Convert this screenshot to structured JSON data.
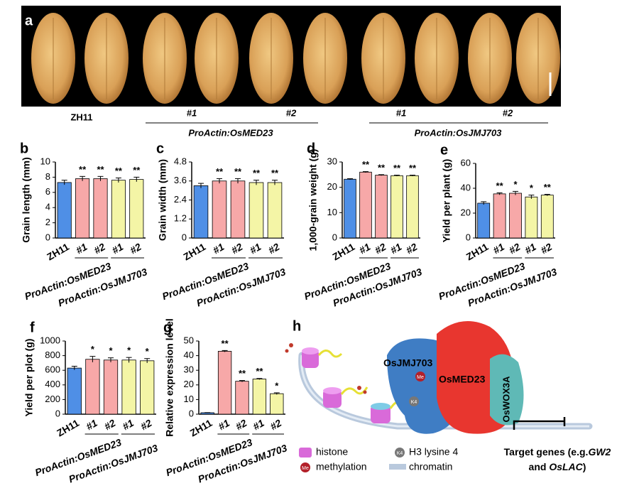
{
  "panel_a": {
    "panel": "a",
    "control": "ZH11",
    "lines": [
      "#1",
      "#2",
      "#1",
      "#2"
    ],
    "constructs": [
      "ProActin:OsMED23",
      "ProActin:OsJMJ703"
    ]
  },
  "chart_data": [
    {
      "type": "bar",
      "panel": "b",
      "ylabel": "Grain length (mm)",
      "categories": [
        "ZH11",
        "#1",
        "#2",
        "#1",
        "#2"
      ],
      "group_labels": [
        "ProActin:OsMED23",
        "ProActin:OsJMJ703"
      ],
      "values": [
        7.3,
        7.8,
        7.8,
        7.6,
        7.7
      ],
      "errors": [
        0.3,
        0.3,
        0.3,
        0.3,
        0.3
      ],
      "annotations": [
        null,
        "**",
        "**",
        "**",
        "**"
      ],
      "colors": [
        "#4f8fe6",
        "#f7a8a8",
        "#f7a8a8",
        "#f4f5a6",
        "#f4f5a6"
      ],
      "ylim": [
        0,
        10
      ],
      "yticks": [
        0,
        2,
        4,
        6,
        8,
        10
      ]
    },
    {
      "type": "bar",
      "panel": "c",
      "ylabel": "Grain width (mm)",
      "categories": [
        "ZH11",
        "#1",
        "#2",
        "#1",
        "#2"
      ],
      "group_labels": [
        "ProActin:OsMED23",
        "ProActin:OsJMJ703"
      ],
      "values": [
        3.3,
        3.6,
        3.6,
        3.5,
        3.5
      ],
      "errors": [
        0.15,
        0.15,
        0.15,
        0.15,
        0.15
      ],
      "annotations": [
        null,
        "**",
        "**",
        "**",
        "**"
      ],
      "colors": [
        "#4f8fe6",
        "#f7a8a8",
        "#f7a8a8",
        "#f4f5a6",
        "#f4f5a6"
      ],
      "ylim": [
        0,
        4.8
      ],
      "yticks": [
        0,
        1.2,
        2.4,
        3.6,
        4.8
      ]
    },
    {
      "type": "bar",
      "panel": "d",
      "ylabel": "1,000-grain weight (g)",
      "categories": [
        "ZH11",
        "#1",
        "#2",
        "#1",
        "#2"
      ],
      "group_labels": [
        "ProActin:OsMED23",
        "ProActin:OsJMJ703"
      ],
      "values": [
        23.2,
        26,
        24.8,
        24.6,
        24.6
      ],
      "errors": [
        0.2,
        0.2,
        0.2,
        0.2,
        0.2
      ],
      "annotations": [
        null,
        "**",
        "**",
        "**",
        "**"
      ],
      "colors": [
        "#4f8fe6",
        "#f7a8a8",
        "#f7a8a8",
        "#f4f5a6",
        "#f4f5a6"
      ],
      "ylim": [
        0,
        30
      ],
      "yticks": [
        0,
        10,
        20,
        30
      ]
    },
    {
      "type": "bar",
      "panel": "e",
      "ylabel": "Yield per plant (g)",
      "categories": [
        "ZH11",
        "#1",
        "#2",
        "#1",
        "#2"
      ],
      "group_labels": [
        "ProActin:OsMED23",
        "ProActin:OsJMJ703"
      ],
      "values": [
        28,
        35.5,
        36,
        33,
        34.5
      ],
      "errors": [
        1.2,
        0.8,
        1.5,
        1.5,
        0.6
      ],
      "annotations": [
        null,
        "**",
        "*",
        "*",
        "**"
      ],
      "colors": [
        "#4f8fe6",
        "#f7a8a8",
        "#f7a8a8",
        "#f4f5a6",
        "#f4f5a6"
      ],
      "ylim": [
        0,
        60
      ],
      "yticks": [
        0,
        20,
        40,
        60
      ]
    },
    {
      "type": "bar",
      "panel": "f",
      "ylabel": "Yield per plot (g)",
      "categories": [
        "ZH11",
        "#1",
        "#2",
        "#1",
        "#2"
      ],
      "group_labels": [
        "ProActin:OsMED23",
        "ProActin:OsJMJ703"
      ],
      "values": [
        630,
        750,
        740,
        740,
        730
      ],
      "errors": [
        25,
        40,
        30,
        35,
        30
      ],
      "annotations": [
        null,
        "*",
        "*",
        "*",
        "*"
      ],
      "colors": [
        "#4f8fe6",
        "#f7a8a8",
        "#f7a8a8",
        "#f4f5a6",
        "#f4f5a6"
      ],
      "ylim": [
        0,
        1000
      ],
      "yticks": [
        0,
        200,
        400,
        600,
        800,
        1000
      ]
    },
    {
      "type": "bar",
      "panel": "g",
      "ylabel": "Relative expression level",
      "categories": [
        "ZH11",
        "#1",
        "#2",
        "#1",
        "#2"
      ],
      "group_labels": [
        "ProActin:OsMED23",
        "ProActin:OsJMJ703"
      ],
      "values": [
        1,
        43,
        22.5,
        24,
        14
      ],
      "errors": [
        0.1,
        0.5,
        0.5,
        0.4,
        0.6
      ],
      "annotations": [
        null,
        "**",
        "**",
        "**",
        "*"
      ],
      "colors": [
        "#4f8fe6",
        "#f7a8a8",
        "#f7a8a8",
        "#f4f5a6",
        "#f4f5a6"
      ],
      "ylim": [
        0,
        50
      ],
      "yticks": [
        0,
        10,
        20,
        30,
        40,
        50
      ]
    }
  ],
  "panel_h": {
    "panel": "h",
    "proteins": [
      "OsJMJ703",
      "OsMED23",
      "OsWOX3A"
    ],
    "marks": [
      "Me",
      "K4"
    ],
    "legend": [
      "histone",
      "H3 lysine 4",
      "methylation",
      "chromatin"
    ],
    "target_genes": [
      [
        "Target genes (e.g.",
        "GW2"
      ],
      [
        "and ",
        "OsLAC",
        ")"
      ]
    ]
  }
}
